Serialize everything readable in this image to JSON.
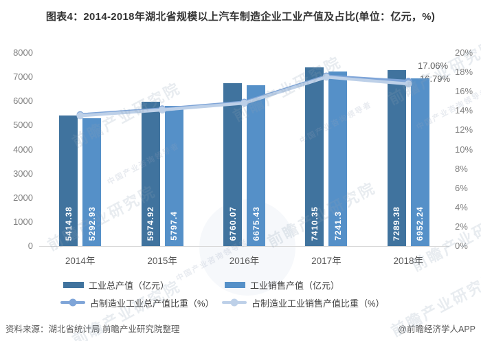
{
  "title": "图表4：2014-2018年湖北省规模以上汽车制造企业工业产值及占比(单位：亿元，%)",
  "watermark_primary": "前瞻产业研究院",
  "watermark_secondary": "中国产业咨询领导者",
  "footer": {
    "source_note": "资料来源：湖北省统计局 前瞻产业研究院整理",
    "credit": "@前瞻经济学人APP"
  },
  "colors": {
    "bar_total": "#40739E",
    "bar_sales": "#5590C8",
    "line_total_share": "#7FA5D8",
    "line_sales_share": "#BDD0E8",
    "axis_text": "#7F7F7F",
    "category_text": "#595959",
    "title_text": "#333333",
    "footer_text": "#595959",
    "axis_line": "#D9D9D9",
    "bar_value_text": "#FFFFFF"
  },
  "chart_data": {
    "type": "bar",
    "subtype": "grouped-bars-with-two-line-overlays-dual-axis",
    "categories": [
      "2014年",
      "2015年",
      "2016年",
      "2017年",
      "2018年"
    ],
    "bar_series": [
      {
        "name": "工业总产值（亿元）",
        "color": "#40739E",
        "axis": "left",
        "values": [
          5414.38,
          5974.92,
          6760.07,
          7410.35,
          7289.38
        ]
      },
      {
        "name": "工业销售产值（亿元）",
        "color": "#5590C8",
        "axis": "left",
        "values": [
          5292.93,
          5797.4,
          6675.43,
          7241.3,
          6952.24
        ]
      }
    ],
    "bar_value_labels": [
      [
        "5414.38",
        "5974.92",
        "6760.07",
        "7410.35",
        "7289.38"
      ],
      [
        "5292.93",
        "5797.4",
        "6675.43",
        "7241.3",
        "6952.24"
      ]
    ],
    "line_series": [
      {
        "name": "占制造业工业总产值比重（%）",
        "color": "#7FA5D8",
        "axis": "right",
        "values": [
          13.6,
          14.2,
          14.9,
          17.6,
          17.06
        ]
      },
      {
        "name": "占制造业工业销售产值比重（%）",
        "color": "#BDD0E8",
        "axis": "right",
        "values": [
          13.5,
          14.1,
          14.8,
          17.5,
          16.79
        ]
      }
    ],
    "annotations": [
      {
        "text": "17.06%",
        "series": "占制造业工业总产值比重（%）",
        "category": "2018年"
      },
      {
        "text": "16.79%",
        "series": "占制造业工业销售产值比重（%）",
        "category": "2018年"
      }
    ],
    "left_axis": {
      "min": 0,
      "max": 8000,
      "step": 1000,
      "ticks": [
        "0",
        "1000",
        "2000",
        "3000",
        "4000",
        "5000",
        "6000",
        "7000",
        "8000"
      ]
    },
    "right_axis": {
      "min": 0,
      "max": 20,
      "step": 2,
      "suffix": "%",
      "ticks": [
        "0%",
        "2%",
        "4%",
        "6%",
        "8%",
        "10%",
        "12%",
        "14%",
        "16%",
        "18%",
        "20%"
      ]
    },
    "grid": false,
    "legend_position": "bottom"
  }
}
